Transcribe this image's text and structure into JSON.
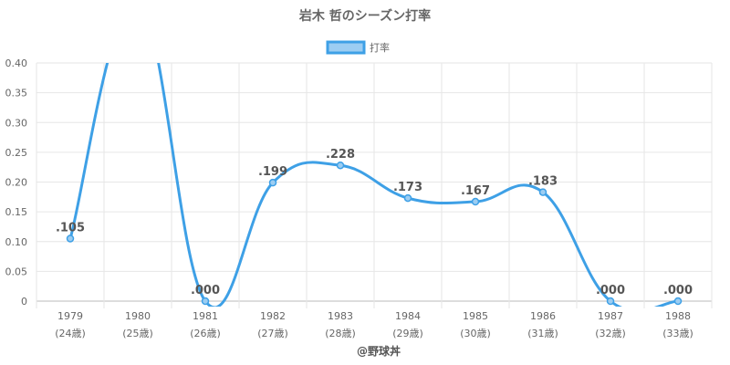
{
  "chart_data": {
    "type": "line",
    "title": "岩木 哲のシーズン打率",
    "legend": {
      "label": "打率",
      "position": "top"
    },
    "x": [
      "1979",
      "1980",
      "1981",
      "1982",
      "1983",
      "1984",
      "1985",
      "1986",
      "1987",
      "1988"
    ],
    "x_sub": [
      "(24歳)",
      "(25歳)",
      "(26歳)",
      "(27歳)",
      "(28歳)",
      "(29歳)",
      "(30歳)",
      "(31歳)",
      "(32歳)",
      "(33歳)"
    ],
    "series": [
      {
        "name": "打率",
        "values": [
          0.105,
          0.5,
          0.0,
          0.199,
          0.228,
          0.173,
          0.167,
          0.183,
          0.0,
          0.0
        ],
        "labels": [
          ".105",
          "",
          ".000",
          ".199",
          ".228",
          ".173",
          ".167",
          ".183",
          ".000",
          ".000"
        ]
      }
    ],
    "ylim": [
      0,
      0.4
    ],
    "yticks": [
      "0",
      "0.05",
      "0.10",
      "0.15",
      "0.20",
      "0.25",
      "0.30",
      "0.35",
      "0.40"
    ],
    "grid": true,
    "colors": {
      "line": "#3ea0e6",
      "legend_fill": "#9ccdf2"
    }
  },
  "credit": "@野球丼"
}
